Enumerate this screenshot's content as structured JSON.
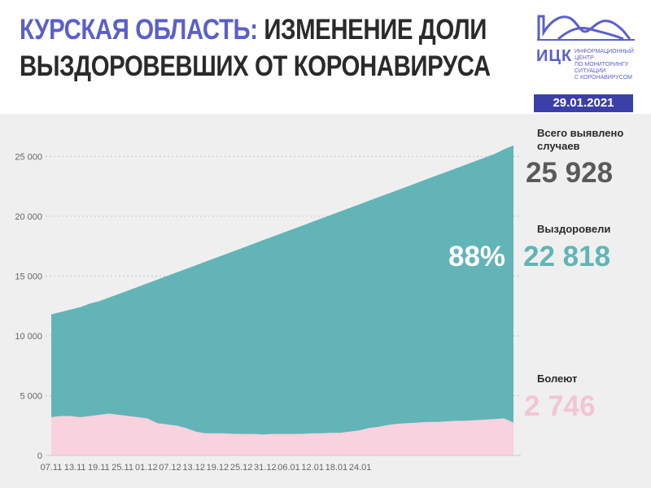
{
  "header": {
    "title_accent": "КУРСКАЯ ОБЛАСТЬ:",
    "title_rest": " ИЗМЕНЕНИЕ ДОЛИ",
    "title_line2": "ВЫЗДОРОВЕВШИХ ОТ КОРОНАВИРУСА",
    "logo_name": "ИЦК",
    "logo_subtitle": "ИНФОРМАЦИОННЫЙ ЦЕНТР\nПО МОНИТОРИНГУ СИТУАЦИИ\nС КОРОНАВИРУСОМ",
    "date": "29.01.2021"
  },
  "stats": {
    "total_label": "Всего выявлено случаев",
    "total_value": "25 928",
    "recovered_label": "Выздоровели",
    "recovered_percent": "88%",
    "recovered_value": "22 818",
    "sick_label": "Болеют",
    "sick_value": "2 746"
  },
  "colors": {
    "accent": "#5b5fc7",
    "badge": "#3d3fa8",
    "total_area": "#62b4b7",
    "sick_area": "#f8d2de",
    "total_text": "#5a5a5a",
    "recovered_text": "#62b4b7",
    "sick_text": "#f3c5d3"
  },
  "chart_data": {
    "type": "area",
    "x_tick_labels": [
      "07.11",
      "13.11",
      "19.11",
      "25.11",
      "01.12",
      "07.12",
      "13.12",
      "19.12",
      "25.12",
      "31.12",
      "06.01",
      "12.01",
      "18.01",
      "24.01"
    ],
    "y_tick_labels": [
      "0",
      "5 000",
      "10 000",
      "15 000",
      "20 000",
      "25 000"
    ],
    "ylim": [
      0,
      27000
    ],
    "grid": "horizontal dashed",
    "series": [
      {
        "key": "total",
        "values": [
          11800,
          12000,
          12200,
          12400,
          12700,
          12900,
          13200,
          13500,
          13800,
          14100,
          14400,
          14700,
          15000,
          15300,
          15600,
          15900,
          16200,
          16500,
          16800,
          17100,
          17400,
          17700,
          18000,
          18300,
          18600,
          18900,
          19200,
          19500,
          19800,
          20100,
          20400,
          20700,
          21000,
          21300,
          21600,
          21900,
          22200,
          22500,
          22800,
          23100,
          23400,
          23700,
          24000,
          24300,
          24600,
          24900,
          25200,
          25600,
          25928
        ]
      },
      {
        "key": "sick",
        "values": [
          3200,
          3300,
          3300,
          3200,
          3300,
          3400,
          3500,
          3400,
          3300,
          3200,
          3100,
          2700,
          2600,
          2500,
          2300,
          2000,
          1850,
          1850,
          1850,
          1800,
          1800,
          1800,
          1750,
          1800,
          1800,
          1800,
          1800,
          1850,
          1850,
          1900,
          1900,
          2000,
          2100,
          2300,
          2400,
          2550,
          2650,
          2700,
          2750,
          2800,
          2800,
          2850,
          2900,
          2900,
          2950,
          3000,
          3050,
          3100,
          2746
        ]
      }
    ]
  }
}
